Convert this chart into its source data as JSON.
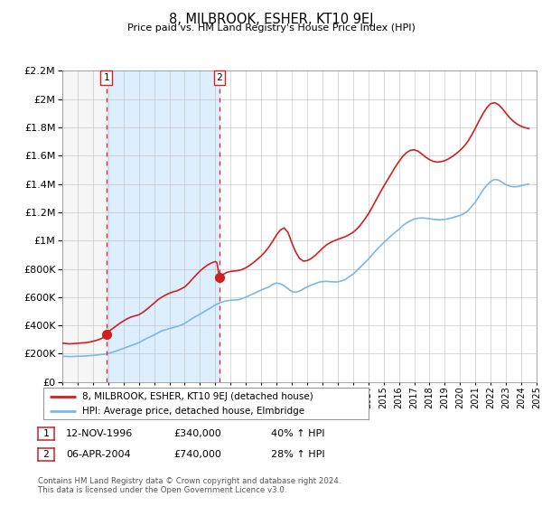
{
  "title": "8, MILBROOK, ESHER, KT10 9EJ",
  "subtitle": "Price paid vs. HM Land Registry's House Price Index (HPI)",
  "xlim": [
    1994,
    2025
  ],
  "ylim": [
    0,
    2200000
  ],
  "yticks": [
    0,
    200000,
    400000,
    600000,
    800000,
    1000000,
    1200000,
    1400000,
    1600000,
    1800000,
    2000000,
    2200000
  ],
  "xticks": [
    1994,
    1995,
    1996,
    1997,
    1998,
    1999,
    2000,
    2001,
    2002,
    2003,
    2004,
    2005,
    2006,
    2007,
    2008,
    2009,
    2010,
    2011,
    2012,
    2013,
    2014,
    2015,
    2016,
    2017,
    2018,
    2019,
    2020,
    2021,
    2022,
    2023,
    2024,
    2025
  ],
  "hpi_color": "#7ab8e8",
  "price_color": "#cc2222",
  "marker_color": "#cc2222",
  "vline_color": "#cc2222",
  "shading_color": "#ddeeff",
  "hatch_color": "#dddddd",
  "grid_color": "#bbbbbb",
  "background_color": "#ffffff",
  "legend_label_price": "8, MILBROOK, ESHER, KT10 9EJ (detached house)",
  "legend_label_hpi": "HPI: Average price, detached house, Elmbridge",
  "event1_x": 1996.87,
  "event1_y": 340000,
  "event1_label": "1",
  "event1_date": "12-NOV-1996",
  "event1_price": "£340,000",
  "event1_hpi": "40% ↑ HPI",
  "event2_x": 2004.27,
  "event2_y": 740000,
  "event2_label": "2",
  "event2_date": "06-APR-2004",
  "event2_price": "£740,000",
  "event2_hpi": "28% ↑ HPI",
  "footer": "Contains HM Land Registry data © Crown copyright and database right 2024.\nThis data is licensed under the Open Government Licence v3.0.",
  "hpi_data": [
    [
      1994.0,
      182000
    ],
    [
      1994.25,
      181000
    ],
    [
      1994.5,
      180000
    ],
    [
      1994.75,
      181000
    ],
    [
      1995.0,
      182000
    ],
    [
      1995.25,
      183000
    ],
    [
      1995.5,
      184000
    ],
    [
      1995.75,
      186000
    ],
    [
      1996.0,
      188000
    ],
    [
      1996.25,
      191000
    ],
    [
      1996.5,
      194000
    ],
    [
      1996.75,
      197000
    ],
    [
      1997.0,
      202000
    ],
    [
      1997.25,
      210000
    ],
    [
      1997.5,
      218000
    ],
    [
      1997.75,
      228000
    ],
    [
      1998.0,
      238000
    ],
    [
      1998.25,
      248000
    ],
    [
      1998.5,
      258000
    ],
    [
      1998.75,
      268000
    ],
    [
      1999.0,
      278000
    ],
    [
      1999.25,
      293000
    ],
    [
      1999.5,
      308000
    ],
    [
      1999.75,
      320000
    ],
    [
      2000.0,
      333000
    ],
    [
      2000.25,
      348000
    ],
    [
      2000.5,
      362000
    ],
    [
      2000.75,
      370000
    ],
    [
      2001.0,
      378000
    ],
    [
      2001.25,
      385000
    ],
    [
      2001.5,
      392000
    ],
    [
      2001.75,
      402000
    ],
    [
      2002.0,
      415000
    ],
    [
      2002.25,
      432000
    ],
    [
      2002.5,
      450000
    ],
    [
      2002.75,
      465000
    ],
    [
      2003.0,
      480000
    ],
    [
      2003.25,
      496000
    ],
    [
      2003.5,
      512000
    ],
    [
      2003.75,
      528000
    ],
    [
      2004.0,
      545000
    ],
    [
      2004.25,
      558000
    ],
    [
      2004.5,
      568000
    ],
    [
      2004.75,
      575000
    ],
    [
      2005.0,
      578000
    ],
    [
      2005.25,
      580000
    ],
    [
      2005.5,
      582000
    ],
    [
      2005.75,
      590000
    ],
    [
      2006.0,
      600000
    ],
    [
      2006.25,
      613000
    ],
    [
      2006.5,
      625000
    ],
    [
      2006.75,
      638000
    ],
    [
      2007.0,
      650000
    ],
    [
      2007.25,
      662000
    ],
    [
      2007.5,
      672000
    ],
    [
      2007.75,
      690000
    ],
    [
      2008.0,
      700000
    ],
    [
      2008.25,
      695000
    ],
    [
      2008.5,
      680000
    ],
    [
      2008.75,
      660000
    ],
    [
      2009.0,
      640000
    ],
    [
      2009.25,
      635000
    ],
    [
      2009.5,
      642000
    ],
    [
      2009.75,
      658000
    ],
    [
      2010.0,
      672000
    ],
    [
      2010.25,
      685000
    ],
    [
      2010.5,
      695000
    ],
    [
      2010.75,
      705000
    ],
    [
      2011.0,
      710000
    ],
    [
      2011.25,
      712000
    ],
    [
      2011.5,
      710000
    ],
    [
      2011.75,
      708000
    ],
    [
      2012.0,
      708000
    ],
    [
      2012.25,
      715000
    ],
    [
      2012.5,
      725000
    ],
    [
      2012.75,
      745000
    ],
    [
      2013.0,
      762000
    ],
    [
      2013.25,
      788000
    ],
    [
      2013.5,
      815000
    ],
    [
      2013.75,
      842000
    ],
    [
      2014.0,
      868000
    ],
    [
      2014.25,
      900000
    ],
    [
      2014.5,
      930000
    ],
    [
      2014.75,
      958000
    ],
    [
      2015.0,
      985000
    ],
    [
      2015.25,
      1010000
    ],
    [
      2015.5,
      1035000
    ],
    [
      2015.75,
      1058000
    ],
    [
      2016.0,
      1080000
    ],
    [
      2016.25,
      1105000
    ],
    [
      2016.5,
      1125000
    ],
    [
      2016.75,
      1140000
    ],
    [
      2017.0,
      1152000
    ],
    [
      2017.25,
      1158000
    ],
    [
      2017.5,
      1160000
    ],
    [
      2017.75,
      1158000
    ],
    [
      2018.0,
      1155000
    ],
    [
      2018.25,
      1150000
    ],
    [
      2018.5,
      1148000
    ],
    [
      2018.75,
      1148000
    ],
    [
      2019.0,
      1150000
    ],
    [
      2019.25,
      1155000
    ],
    [
      2019.5,
      1162000
    ],
    [
      2019.75,
      1170000
    ],
    [
      2020.0,
      1178000
    ],
    [
      2020.25,
      1190000
    ],
    [
      2020.5,
      1210000
    ],
    [
      2020.75,
      1240000
    ],
    [
      2021.0,
      1272000
    ],
    [
      2021.25,
      1315000
    ],
    [
      2021.5,
      1358000
    ],
    [
      2021.75,
      1392000
    ],
    [
      2022.0,
      1418000
    ],
    [
      2022.25,
      1432000
    ],
    [
      2022.5,
      1428000
    ],
    [
      2022.75,
      1412000
    ],
    [
      2023.0,
      1395000
    ],
    [
      2023.25,
      1385000
    ],
    [
      2023.5,
      1380000
    ],
    [
      2023.75,
      1382000
    ],
    [
      2024.0,
      1388000
    ],
    [
      2024.25,
      1395000
    ],
    [
      2024.5,
      1400000
    ]
  ],
  "price_data": [
    [
      1994.0,
      275000
    ],
    [
      1994.25,
      272000
    ],
    [
      1994.5,
      270000
    ],
    [
      1994.75,
      272000
    ],
    [
      1995.0,
      274000
    ],
    [
      1995.25,
      276000
    ],
    [
      1995.5,
      278000
    ],
    [
      1995.75,
      282000
    ],
    [
      1996.0,
      288000
    ],
    [
      1996.25,
      295000
    ],
    [
      1996.5,
      305000
    ],
    [
      1996.75,
      318000
    ],
    [
      1996.87,
      340000
    ],
    [
      1997.0,
      355000
    ],
    [
      1997.25,
      375000
    ],
    [
      1997.5,
      395000
    ],
    [
      1997.75,
      415000
    ],
    [
      1998.0,
      432000
    ],
    [
      1998.25,
      448000
    ],
    [
      1998.5,
      460000
    ],
    [
      1998.75,
      468000
    ],
    [
      1999.0,
      475000
    ],
    [
      1999.25,
      492000
    ],
    [
      1999.5,
      512000
    ],
    [
      1999.75,
      535000
    ],
    [
      2000.0,
      558000
    ],
    [
      2000.25,
      582000
    ],
    [
      2000.5,
      600000
    ],
    [
      2000.75,
      615000
    ],
    [
      2001.0,
      628000
    ],
    [
      2001.25,
      638000
    ],
    [
      2001.5,
      645000
    ],
    [
      2001.75,
      658000
    ],
    [
      2002.0,
      672000
    ],
    [
      2002.25,
      698000
    ],
    [
      2002.5,
      728000
    ],
    [
      2002.75,
      758000
    ],
    [
      2003.0,
      785000
    ],
    [
      2003.25,
      808000
    ],
    [
      2003.5,
      828000
    ],
    [
      2003.75,
      842000
    ],
    [
      2004.0,
      852000
    ],
    [
      2004.1,
      845000
    ],
    [
      2004.27,
      740000
    ],
    [
      2004.5,
      760000
    ],
    [
      2004.75,
      775000
    ],
    [
      2005.0,
      782000
    ],
    [
      2005.25,
      785000
    ],
    [
      2005.5,
      788000
    ],
    [
      2005.75,
      795000
    ],
    [
      2006.0,
      808000
    ],
    [
      2006.25,
      825000
    ],
    [
      2006.5,
      845000
    ],
    [
      2006.75,
      868000
    ],
    [
      2007.0,
      892000
    ],
    [
      2007.25,
      920000
    ],
    [
      2007.5,
      955000
    ],
    [
      2007.75,
      995000
    ],
    [
      2008.0,
      1040000
    ],
    [
      2008.25,
      1075000
    ],
    [
      2008.5,
      1090000
    ],
    [
      2008.75,
      1058000
    ],
    [
      2009.0,
      985000
    ],
    [
      2009.25,
      920000
    ],
    [
      2009.5,
      875000
    ],
    [
      2009.75,
      855000
    ],
    [
      2010.0,
      858000
    ],
    [
      2010.25,
      872000
    ],
    [
      2010.5,
      892000
    ],
    [
      2010.75,
      918000
    ],
    [
      2011.0,
      945000
    ],
    [
      2011.25,
      968000
    ],
    [
      2011.5,
      985000
    ],
    [
      2011.75,
      998000
    ],
    [
      2012.0,
      1008000
    ],
    [
      2012.25,
      1018000
    ],
    [
      2012.5,
      1028000
    ],
    [
      2012.75,
      1042000
    ],
    [
      2013.0,
      1058000
    ],
    [
      2013.25,
      1082000
    ],
    [
      2013.5,
      1112000
    ],
    [
      2013.75,
      1148000
    ],
    [
      2014.0,
      1188000
    ],
    [
      2014.25,
      1235000
    ],
    [
      2014.5,
      1285000
    ],
    [
      2014.75,
      1335000
    ],
    [
      2015.0,
      1382000
    ],
    [
      2015.25,
      1428000
    ],
    [
      2015.5,
      1472000
    ],
    [
      2015.75,
      1518000
    ],
    [
      2016.0,
      1558000
    ],
    [
      2016.25,
      1595000
    ],
    [
      2016.5,
      1622000
    ],
    [
      2016.75,
      1638000
    ],
    [
      2017.0,
      1642000
    ],
    [
      2017.25,
      1632000
    ],
    [
      2017.5,
      1612000
    ],
    [
      2017.75,
      1590000
    ],
    [
      2018.0,
      1572000
    ],
    [
      2018.25,
      1560000
    ],
    [
      2018.5,
      1555000
    ],
    [
      2018.75,
      1558000
    ],
    [
      2019.0,
      1565000
    ],
    [
      2019.25,
      1578000
    ],
    [
      2019.5,
      1595000
    ],
    [
      2019.75,
      1615000
    ],
    [
      2020.0,
      1638000
    ],
    [
      2020.25,
      1665000
    ],
    [
      2020.5,
      1700000
    ],
    [
      2020.75,
      1745000
    ],
    [
      2021.0,
      1795000
    ],
    [
      2021.25,
      1848000
    ],
    [
      2021.5,
      1898000
    ],
    [
      2021.75,
      1940000
    ],
    [
      2022.0,
      1968000
    ],
    [
      2022.25,
      1975000
    ],
    [
      2022.5,
      1962000
    ],
    [
      2022.75,
      1935000
    ],
    [
      2023.0,
      1900000
    ],
    [
      2023.25,
      1868000
    ],
    [
      2023.5,
      1842000
    ],
    [
      2023.75,
      1822000
    ],
    [
      2024.0,
      1808000
    ],
    [
      2024.25,
      1798000
    ],
    [
      2024.5,
      1792000
    ]
  ]
}
